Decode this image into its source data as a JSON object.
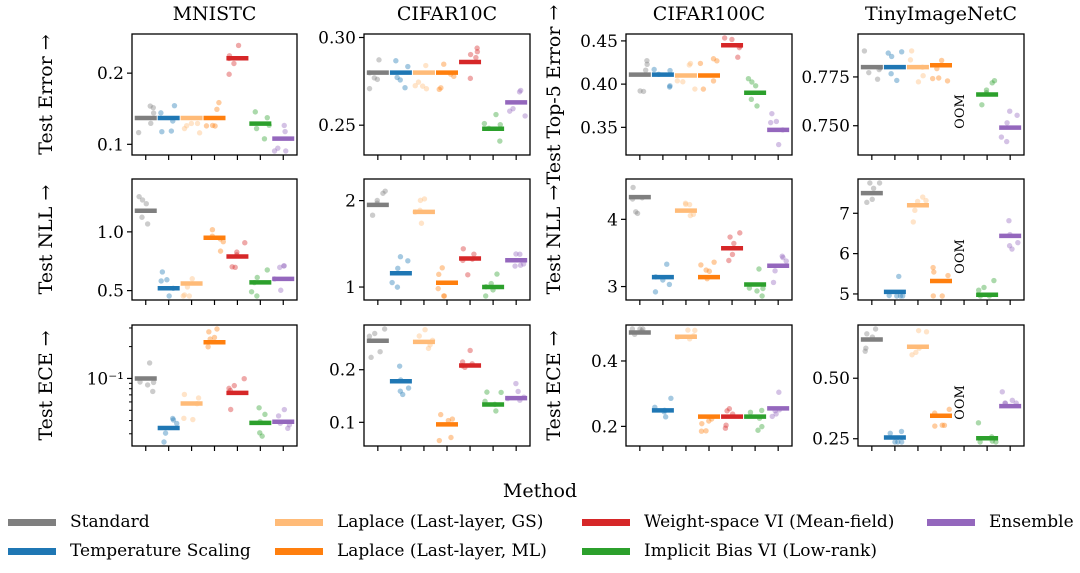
{
  "figure": {
    "legend_title": "Method",
    "oom_label": "OOM"
  },
  "methods": [
    {
      "name": "Standard",
      "color": "#7f7f7f"
    },
    {
      "name": "Temperature Scaling",
      "color": "#1f77b4"
    },
    {
      "name": "Laplace (Last-layer, GS)",
      "color": "#ffbb78"
    },
    {
      "name": "Laplace (Last-layer, ML)",
      "color": "#ff7f0e"
    },
    {
      "name": "Weight-space VI (Mean-field)",
      "color": "#d62728"
    },
    {
      "name": "Implicit Bias VI (Low-rank)",
      "color": "#2ca02c"
    },
    {
      "name": "Ensemble",
      "color": "#9467bd"
    }
  ],
  "chart_data": {
    "type": "scatter",
    "columns": [
      "MNISTC",
      "CIFAR10C",
      "CIFAR100C",
      "TinyImageNetC"
    ],
    "row_labels": [
      "Test Error →",
      "Test NLL →",
      "Test ECE →"
    ],
    "row_labels_alt": {
      "0": "Test Top-5 Error →"
    },
    "alt_label_columns": [
      2,
      3
    ],
    "xlabel": "Method",
    "panels": [
      {
        "row": 0,
        "col": 0,
        "ylim": [
          0.085,
          0.255
        ],
        "scale": "linear",
        "yticks": [
          0.1,
          0.2
        ],
        "ytick_labels": [
          "0.1",
          "0.2"
        ],
        "means": [
          0.137,
          0.137,
          0.137,
          0.137,
          0.221,
          0.129,
          0.108
        ]
      },
      {
        "row": 0,
        "col": 1,
        "ylim": [
          0.233,
          0.302
        ],
        "scale": "linear",
        "yticks": [
          0.25,
          0.3
        ],
        "ytick_labels": [
          "0.25",
          "0.30"
        ],
        "means": [
          0.28,
          0.28,
          0.28,
          0.28,
          0.286,
          0.248,
          0.263
        ]
      },
      {
        "row": 0,
        "col": 2,
        "ylim": [
          0.318,
          0.458
        ],
        "scale": "linear",
        "yticks": [
          0.35,
          0.4,
          0.45
        ],
        "ytick_labels": [
          "0.35",
          "0.40",
          "0.45"
        ],
        "means": [
          0.411,
          0.411,
          0.41,
          0.41,
          0.445,
          0.39,
          0.347
        ]
      },
      {
        "row": 0,
        "col": 3,
        "ylim": [
          0.735,
          0.797
        ],
        "scale": "linear",
        "yticks": [
          0.75,
          0.775
        ],
        "ytick_labels": [
          "0.750",
          "0.775"
        ],
        "means": [
          0.78,
          0.78,
          0.78,
          0.781,
          null,
          0.766,
          0.749
        ],
        "oom_index": 4
      },
      {
        "row": 1,
        "col": 0,
        "ylim": [
          0.42,
          1.45
        ],
        "scale": "linear",
        "yticks": [
          0.5,
          1.0
        ],
        "ytick_labels": [
          "0.5",
          "1.0"
        ],
        "means": [
          1.18,
          0.52,
          0.56,
          0.95,
          0.79,
          0.57,
          0.6
        ]
      },
      {
        "row": 1,
        "col": 1,
        "ylim": [
          0.85,
          2.25
        ],
        "scale": "linear",
        "yticks": [
          1,
          2
        ],
        "ytick_labels": [
          "1",
          "2"
        ],
        "means": [
          1.95,
          1.16,
          1.87,
          1.05,
          1.33,
          1.0,
          1.31
        ]
      },
      {
        "row": 1,
        "col": 2,
        "ylim": [
          2.8,
          4.6
        ],
        "scale": "linear",
        "yticks": [
          3,
          4
        ],
        "ytick_labels": [
          "3",
          "4"
        ],
        "means": [
          4.33,
          3.14,
          4.13,
          3.14,
          3.57,
          3.03,
          3.31
        ]
      },
      {
        "row": 1,
        "col": 3,
        "ylim": [
          4.85,
          7.85
        ],
        "scale": "linear",
        "yticks": [
          5,
          6,
          7
        ],
        "ytick_labels": [
          "5",
          "6",
          "7"
        ],
        "means": [
          7.5,
          5.05,
          7.2,
          5.32,
          null,
          4.98,
          6.44
        ],
        "oom_index": 4
      },
      {
        "row": 2,
        "col": 0,
        "ylim": [
          0.023,
          0.32
        ],
        "scale": "log",
        "yticks": [
          0.1
        ],
        "ytick_labels": [
          "10⁻¹"
        ],
        "means": [
          0.1,
          0.034,
          0.058,
          0.22,
          0.073,
          0.038,
          0.039
        ]
      },
      {
        "row": 2,
        "col": 1,
        "ylim": [
          0.055,
          0.285
        ],
        "scale": "linear",
        "yticks": [
          0.1,
          0.2
        ],
        "ytick_labels": [
          "0.1",
          "0.2"
        ],
        "means": [
          0.255,
          0.178,
          0.253,
          0.096,
          0.208,
          0.134,
          0.146
        ]
      },
      {
        "row": 2,
        "col": 2,
        "ylim": [
          0.14,
          0.51
        ],
        "scale": "linear",
        "yticks": [
          0.2,
          0.4
        ],
        "ytick_labels": [
          "0.2",
          "0.4"
        ],
        "means": [
          0.487,
          0.249,
          0.474,
          0.23,
          0.23,
          0.23,
          0.255
        ]
      },
      {
        "row": 2,
        "col": 3,
        "ylim": [
          0.22,
          0.72
        ],
        "scale": "linear",
        "yticks": [
          0.25,
          0.5
        ],
        "ytick_labels": [
          "0.25",
          "0.50"
        ],
        "means": [
          0.66,
          0.255,
          0.63,
          0.345,
          null,
          0.252,
          0.385
        ],
        "oom_index": 4
      }
    ]
  }
}
